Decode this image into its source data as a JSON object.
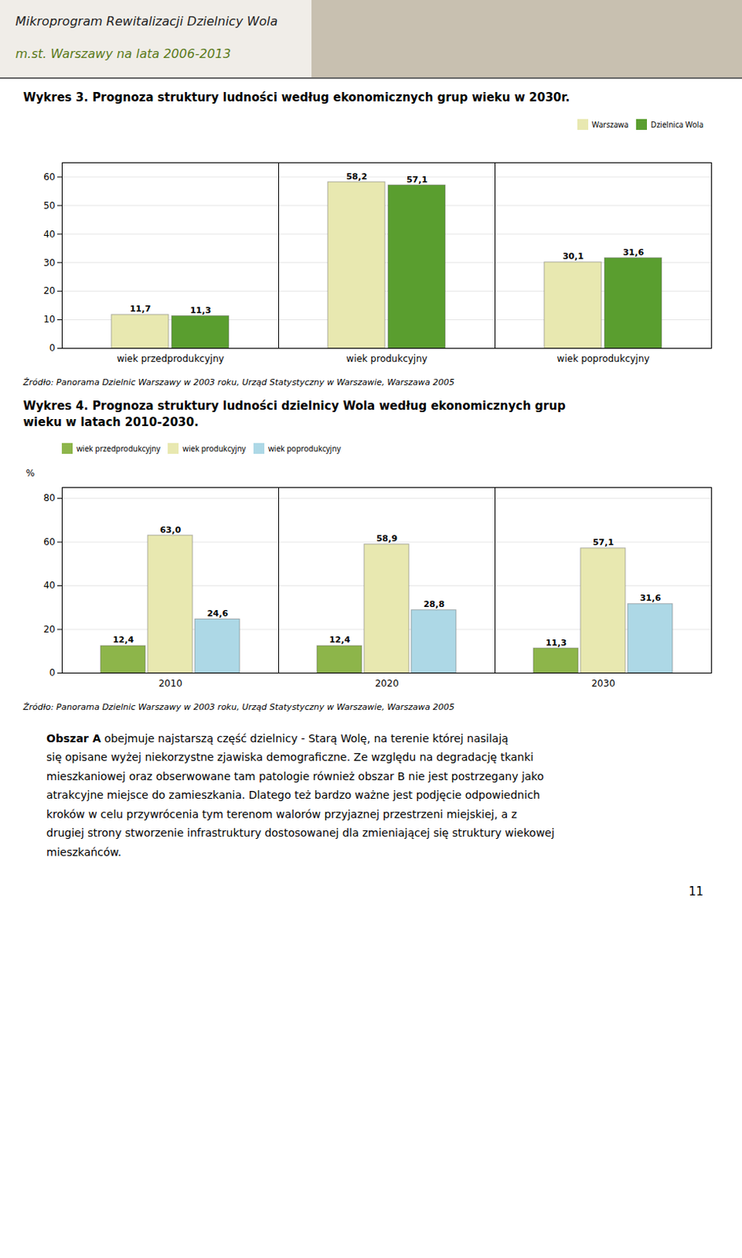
{
  "title": "Mikroprogram Rewitalizacji Dzielnicy Wola",
  "subtitle": "m.st. Warszawy na lata 2006-2013",
  "chart_data": [
    {
      "type": "bar",
      "title": "Wykres 3. Prognoza struktury ludności według ekonomicznych grup wieku w 2030r.",
      "categories": [
        "wiek przedprodukcyjny",
        "wiek produkcyjny",
        "wiek poprodukcyjny"
      ],
      "series": [
        {
          "name": "Warszawa",
          "color": "#e8e8b0",
          "values": [
            11.7,
            58.2,
            30.1
          ],
          "value_labels": [
            "11,7",
            "58,2",
            "30,1"
          ]
        },
        {
          "name": "Dzielnica Wola",
          "color": "#5a9e2f",
          "values": [
            11.3,
            57.1,
            31.6
          ],
          "value_labels": [
            "11,3",
            "57,1",
            "31,6"
          ]
        }
      ],
      "ylim": [
        0,
        65
      ],
      "yticks": [
        0,
        10,
        20,
        30,
        40,
        50,
        60
      ],
      "grid": true,
      "legend": "upper right",
      "data_labels": true,
      "caption": "Źródło: Panorama Dzielnic Warszawy w 2003 roku, Urząd Statystyczny w Warszawie, Warszawa 2005"
    },
    {
      "type": "bar",
      "title": "Wykres 4. Prognoza struktury ludności dzielnicy Wola według ekonomicznych grup\nwieku w latach 2010-2030.",
      "categories": [
        "2010",
        "2020",
        "2030"
      ],
      "series": [
        {
          "name": "wiek przedprodukcyjny",
          "color": "#8db54a",
          "values": [
            12.4,
            12.4,
            11.3
          ],
          "value_labels": [
            "12,4",
            "12,4",
            "11,3"
          ]
        },
        {
          "name": "wiek produkcyjny",
          "color": "#e8e8b0",
          "values": [
            63.0,
            58.9,
            57.1
          ],
          "value_labels": [
            "63,0",
            "58,9",
            "57,1"
          ]
        },
        {
          "name": "wiek poprodukcyjny",
          "color": "#add8e6",
          "values": [
            24.6,
            28.8,
            31.6
          ],
          "value_labels": [
            "24,6",
            "28,8",
            "31,6"
          ]
        }
      ],
      "ylabel": "%",
      "ylim": [
        0,
        85
      ],
      "yticks": [
        0,
        20,
        40,
        60,
        80
      ],
      "grid": true,
      "legend": "upper left",
      "data_labels": true,
      "caption": "Źródło: Panorama Dzielnic Warszawy w 2003 roku, Urząd Statystyczny w Warszawie, Warszawa 2005"
    }
  ],
  "body": {
    "lead": "Obszar A",
    "lines": [
      " obejmuje najstarszą część dzielnicy - Starą Wolę, na terenie której nasilają",
      "się opisane wyżej niekorzystne zjawiska demograficzne. Ze względu na degradację tkanki",
      "mieszkaniowej oraz obserwowane tam patologie również obszar B nie jest postrzegany jako",
      "atrakcyjne miejsce do zamieszkania. Dlatego też bardzo ważne jest podjęcie odpowiednich",
      "kroków w celu przywrócenia tym terenom walorów przyjaznej przestrzeni miejskiej, a z",
      "drugiej strony stworzenie infrastruktury dostosowanej dla zmieniającej się struktury wiekowej",
      "mieszkańców."
    ]
  },
  "page_number": "11"
}
